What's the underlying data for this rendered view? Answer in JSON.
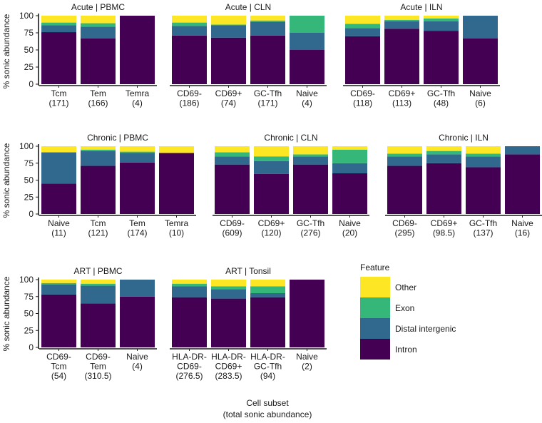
{
  "chart_data": {
    "type": "bar",
    "stacked": true,
    "xlabel_line1": "Cell subset",
    "xlabel_line2": "(total sonic abundance)",
    "ylabel": "% sonic abundance",
    "ylim": [
      0,
      100
    ],
    "yticks": [
      "0",
      "25",
      "50",
      "75",
      "100"
    ],
    "legend": {
      "title": "Feature",
      "position": "bottom-right",
      "entries": [
        {
          "name": "Other",
          "color": "#fde725"
        },
        {
          "name": "Exon",
          "color": "#35b779"
        },
        {
          "name": "Distal intergenic",
          "color": "#31688e"
        },
        {
          "name": "Intron",
          "color": "#440154"
        }
      ]
    },
    "stack_order": [
      "Intron",
      "Distal intergenic",
      "Exon",
      "Other"
    ],
    "colors": {
      "Intron": "#440154",
      "Distal intergenic": "#31688e",
      "Exon": "#35b779",
      "Other": "#fde725"
    },
    "facets": [
      {
        "title": "Acute | PBMC",
        "bars": [
          {
            "label": [
              "Tcm",
              "(171)"
            ],
            "values": [
              76,
              10,
              4,
              10
            ]
          },
          {
            "label": [
              "Tem",
              "(166)"
            ],
            "values": [
              67,
              17,
              5,
              11
            ]
          },
          {
            "label": [
              "Temra",
              "(4)"
            ],
            "values": [
              100,
              0,
              0,
              0
            ]
          }
        ]
      },
      {
        "title": "Acute | CLN",
        "bars": [
          {
            "label": [
              "CD69-",
              "(186)"
            ],
            "values": [
              71,
              14,
              5,
              10
            ]
          },
          {
            "label": [
              "CD69+",
              "(74)"
            ],
            "values": [
              68,
              18,
              1,
              13
            ]
          },
          {
            "label": [
              "GC-Tfh",
              "(171)"
            ],
            "values": [
              71,
              20,
              2,
              7
            ]
          },
          {
            "label": [
              "Naive",
              "(4)"
            ],
            "values": [
              50,
              25,
              25,
              0
            ]
          }
        ]
      },
      {
        "title": "Acute | ILN",
        "bars": [
          {
            "label": [
              "CD69-",
              "(118)"
            ],
            "values": [
              70,
              12,
              6,
              12
            ]
          },
          {
            "label": [
              "CD69+",
              "(113)"
            ],
            "values": [
              81,
              11,
              2,
              6
            ]
          },
          {
            "label": [
              "GC-Tfh",
              "(48)"
            ],
            "values": [
              78,
              14,
              4,
              4
            ]
          },
          {
            "label": [
              "Naive",
              "(6)"
            ],
            "values": [
              67,
              33,
              0,
              0
            ]
          }
        ]
      },
      {
        "title": "Chronic | PBMC",
        "bars": [
          {
            "label": [
              "Naive",
              "(11)"
            ],
            "values": [
              45,
              46,
              0,
              9
            ]
          },
          {
            "label": [
              "Tcm",
              "(121)"
            ],
            "values": [
              71,
              22,
              2,
              5
            ]
          },
          {
            "label": [
              "Tem",
              "(174)"
            ],
            "values": [
              76,
              14,
              2,
              8
            ]
          },
          {
            "label": [
              "Temra",
              "(10)"
            ],
            "values": [
              90,
              0,
              0,
              10
            ]
          }
        ]
      },
      {
        "title": "Chronic | CLN",
        "bars": [
          {
            "label": [
              "CD69-",
              "(609)"
            ],
            "values": [
              73,
              12,
              6,
              9
            ]
          },
          {
            "label": [
              "CD69+",
              "(120)"
            ],
            "values": [
              59,
              19,
              7,
              15
            ]
          },
          {
            "label": [
              "GC-Tfh",
              "(276)"
            ],
            "values": [
              73,
              12,
              3,
              12
            ]
          },
          {
            "label": [
              "Naive",
              "(20)"
            ],
            "values": [
              60,
              15,
              20,
              5
            ]
          }
        ]
      },
      {
        "title": "Chronic | ILN",
        "bars": [
          {
            "label": [
              "CD69-",
              "(295)"
            ],
            "values": [
              71,
              14,
              4,
              11
            ]
          },
          {
            "label": [
              "CD69+",
              "(98.5)"
            ],
            "values": [
              75,
              13,
              5,
              7
            ]
          },
          {
            "label": [
              "GC-Tfh",
              "(137)"
            ],
            "values": [
              69,
              16,
              4,
              11
            ]
          },
          {
            "label": [
              "Naive",
              "(16)"
            ],
            "values": [
              88,
              12,
              0,
              0
            ]
          }
        ]
      },
      {
        "title": "ART | PBMC",
        "bars": [
          {
            "label": [
              "CD69-",
              "Tcm",
              "(54)"
            ],
            "values": [
              78,
              15,
              2,
              5
            ]
          },
          {
            "label": [
              "CD69-",
              "Tem",
              "(310.5)"
            ],
            "values": [
              65,
              26,
              3,
              6
            ]
          },
          {
            "label": [
              "Naive",
              "(4)"
            ],
            "values": [
              75,
              25,
              0,
              0
            ]
          }
        ]
      },
      {
        "title": "ART | Tonsil",
        "bars": [
          {
            "label": [
              "HLA-DR-",
              "CD69-",
              "(276.5)"
            ],
            "values": [
              74,
              16,
              4,
              6
            ]
          },
          {
            "label": [
              "HLA-DR-",
              "CD69+",
              "(283.5)"
            ],
            "values": [
              72,
              14,
              4,
              10
            ]
          },
          {
            "label": [
              "HLA-DR-",
              "GC-Tfh",
              "(94)"
            ],
            "values": [
              74,
              6,
              10,
              10
            ]
          },
          {
            "label": [
              "Naive",
              "(2)"
            ],
            "values": [
              100,
              0,
              0,
              0
            ]
          }
        ]
      }
    ]
  }
}
